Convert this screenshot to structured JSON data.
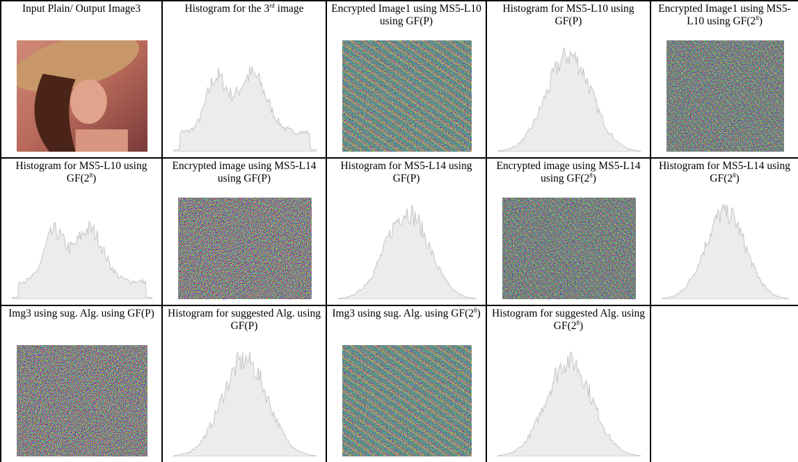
{
  "rows": [
    [
      {
        "text": "Input Plain/ Output Image3"
      },
      {
        "text": "Histogram for the 3",
        "sup": "rd",
        "tail": " image"
      },
      {
        "text": "Encrypted Image1 using MS5-L10 using GF(P)"
      },
      {
        "text": "Histogram for MS5-L10 using GF(P)"
      },
      {
        "text": "Encrypted Image1 using MS5-L10 using GF(2",
        "sup": "8",
        "tail": ")"
      }
    ],
    [
      {
        "text": "Histogram for MS5-L10 using GF(2",
        "sup": "8",
        "tail": ")"
      },
      {
        "text": "Encrypted image using MS5-L14 using GF(P)"
      },
      {
        "text": "Histogram for MS5-L14 using GF(P)"
      },
      {
        "text": "Encrypted image using MS5-L14 using GF(2",
        "sup": "8",
        "tail": ")"
      },
      {
        "text": "Histogram for MS5-L14 using GF(2",
        "sup": "8",
        "tail": ")"
      }
    ],
    [
      {
        "text": "Img3 using sug. Alg. using GF(P)"
      },
      {
        "text": "Histogram for suggested Alg. using GF(P)"
      },
      {
        "text": "Img3 using sug. Alg. using GF(2",
        "sup": "8",
        "tail": ")"
      },
      {
        "text": "Histogram for suggested Alg. using GF(2",
        "sup": "8",
        "tail": ")"
      }
    ]
  ]
}
